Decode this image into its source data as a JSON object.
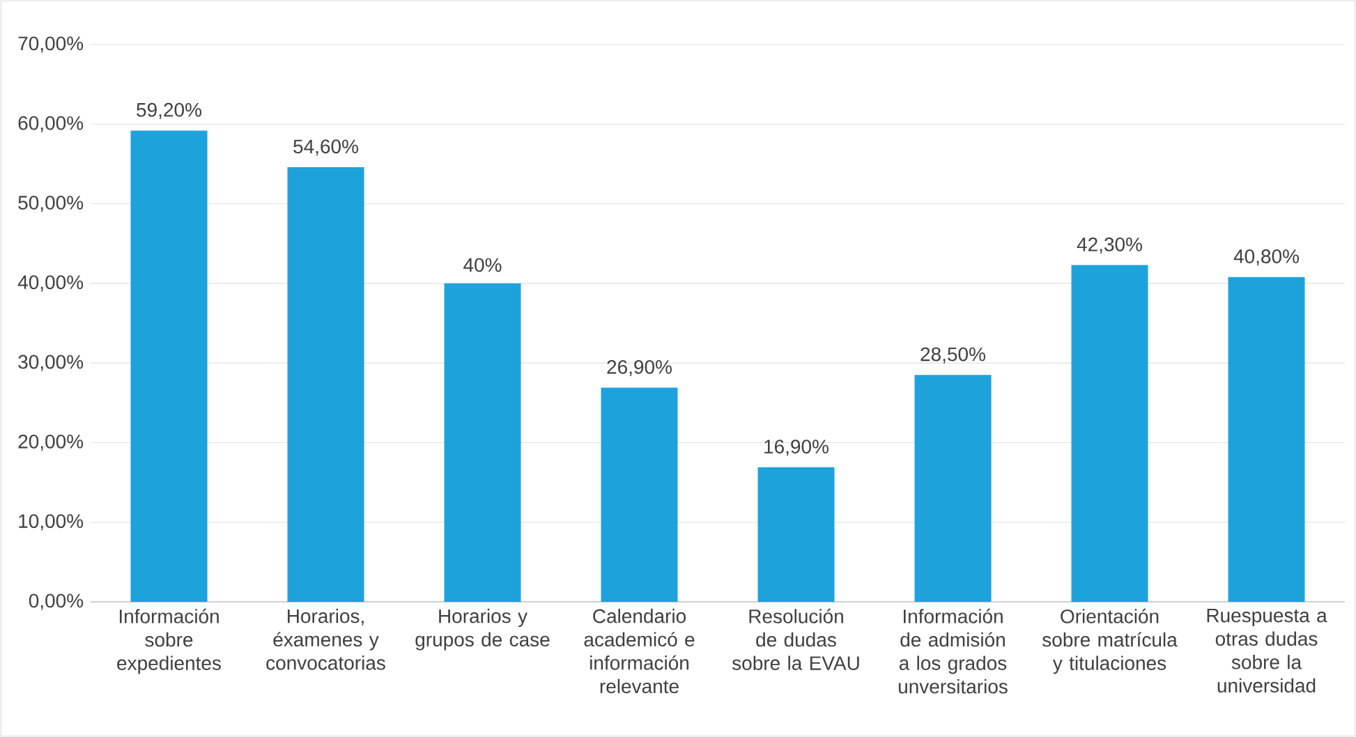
{
  "chart_data": {
    "type": "bar",
    "categories": [
      "Información sobre expedientes",
      "Horarios, éxamenes y convocatorias",
      "Horarios y grupos de case",
      "Calendario academicó e información relevante",
      "Resolución de dudas sobre la EVAU",
      "Información de admisión a los grados unversitarios",
      "Orientación sobre matrícula y titulaciones",
      "Ruespuesta a otras dudas sobre la universidad"
    ],
    "values": [
      59.2,
      54.6,
      40,
      26.9,
      16.9,
      28.5,
      42.3,
      40.8
    ],
    "value_labels": [
      "59,20%",
      "54,60%",
      "40%",
      "26,90%",
      "16,90%",
      "28,50%",
      "42,30%",
      "40,80%"
    ],
    "color": "#1ea2dc",
    "ylim": [
      0,
      70
    ],
    "yticks": [
      {
        "value": 0,
        "label": "0,00%"
      },
      {
        "value": 10,
        "label": "10,00%"
      },
      {
        "value": 20,
        "label": "20,00%"
      },
      {
        "value": 30,
        "label": "30,00%"
      },
      {
        "value": 40,
        "label": "40,00%"
      },
      {
        "value": 50,
        "label": "50,00%"
      },
      {
        "value": 60,
        "label": "60,00%"
      },
      {
        "value": 70,
        "label": "70,00%"
      }
    ],
    "grid": "y"
  }
}
